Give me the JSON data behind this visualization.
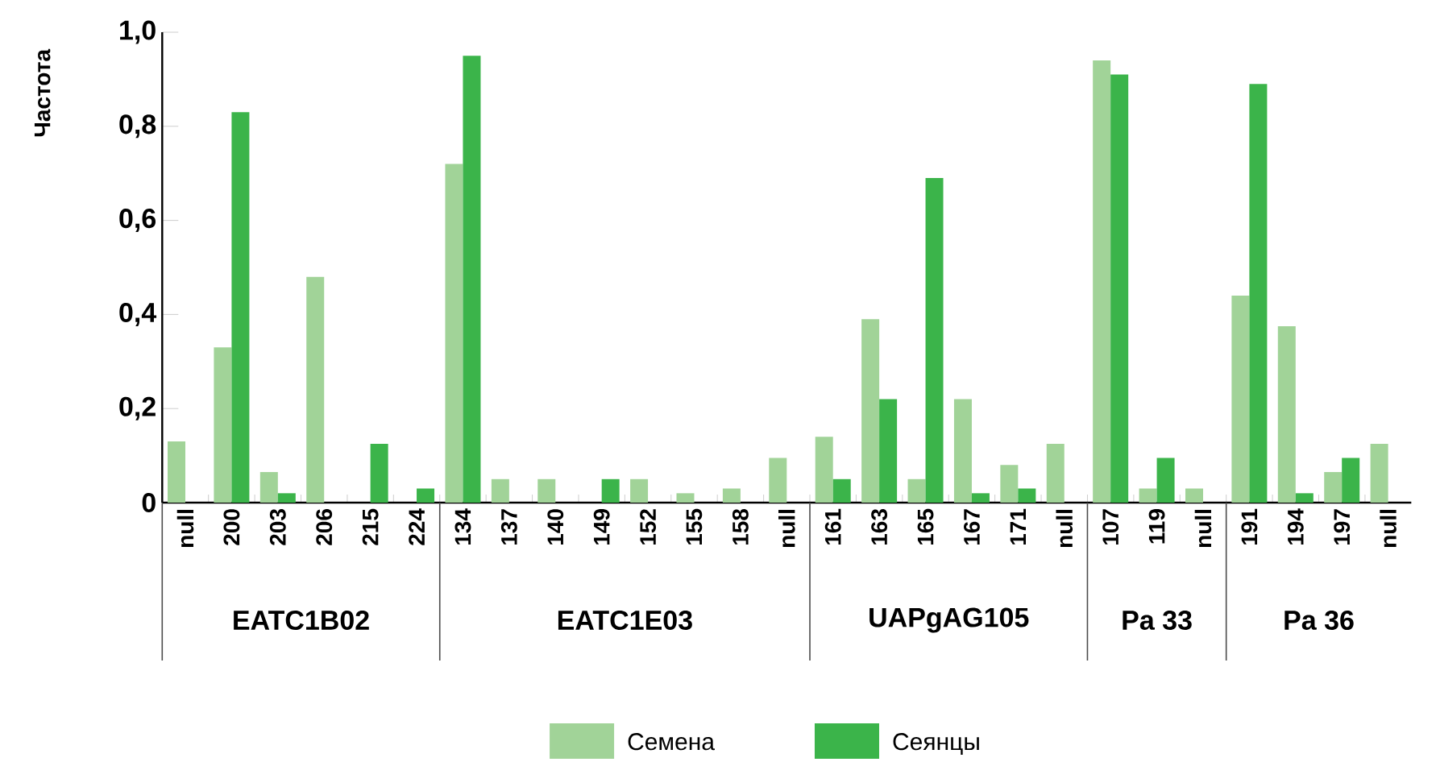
{
  "chart_data": {
    "type": "bar",
    "ylabel": "Частота",
    "categories": [
      "null",
      "200",
      "203",
      "206",
      "215",
      "224",
      "134",
      "137",
      "140",
      "149",
      "152",
      "155",
      "158",
      "null",
      "161",
      "163",
      "165",
      "167",
      "171",
      "null",
      "107",
      "119",
      "null",
      "191",
      "194",
      "197",
      "null"
    ],
    "series": [
      {
        "name": "Семена",
        "color": "#a1d398",
        "values": [
          0.13,
          0.33,
          0.065,
          0.48,
          0,
          0,
          0.72,
          0.05,
          0.05,
          0,
          0.05,
          0.02,
          0.03,
          0.095,
          0.14,
          0.39,
          0.05,
          0.22,
          0.08,
          0.125,
          0.94,
          0.03,
          0.03,
          0.44,
          0.375,
          0.065,
          0.125
        ]
      },
      {
        "name": "Сеянцы",
        "color": "#3bb44a",
        "values": [
          0,
          0.83,
          0.02,
          0,
          0.125,
          0.03,
          0.95,
          0,
          0,
          0.05,
          0,
          0,
          0,
          0,
          0.05,
          0.22,
          0.69,
          0.02,
          0.03,
          0,
          0.91,
          0.095,
          0,
          0.89,
          0.02,
          0.095,
          0
        ]
      }
    ],
    "ylim": [
      0,
      1
    ],
    "yticks": [
      0,
      {
        "value": 0.2,
        "label": "0,2"
      },
      {
        "value": 0.4,
        "label": "0,4"
      },
      {
        "value": 0.6,
        "label": "0,6"
      },
      {
        "value": 0.8,
        "label": "0,8"
      },
      {
        "value": 1,
        "label": "1,0"
      }
    ],
    "annotations": [
      "EATC1B02",
      "EATC1E03",
      "UAPgAG105",
      "Pa 33",
      "Pa 36"
    ],
    "legend": "bottom",
    "grid": false
  }
}
